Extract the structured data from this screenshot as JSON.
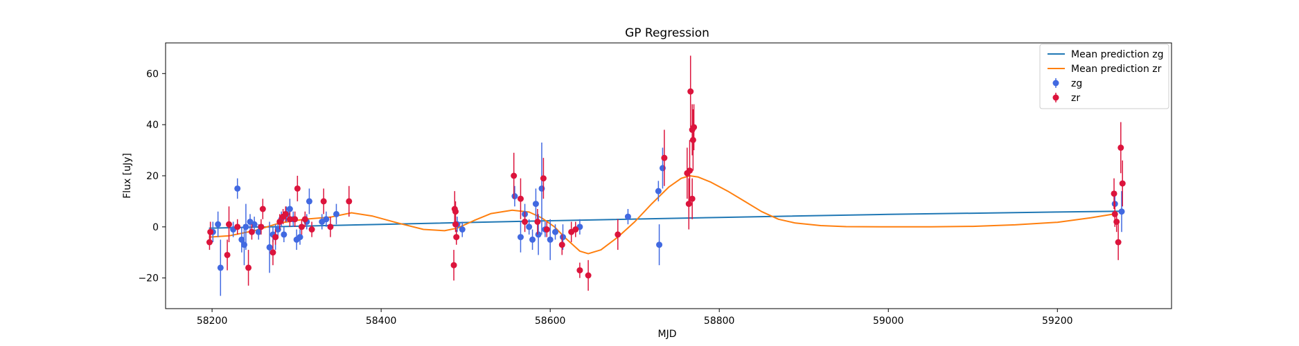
{
  "chart_data": {
    "type": "scatter",
    "title": "GP Regression",
    "xlabel": "MJD",
    "ylabel": "Flux [uJy]",
    "xlim": [
      58145,
      59335
    ],
    "ylim": [
      -32,
      72
    ],
    "xticks": [
      58200,
      58400,
      58600,
      58800,
      59000,
      59200
    ],
    "yticks": [
      -20,
      0,
      20,
      40,
      60
    ],
    "grid": false,
    "legend_position": "top-right",
    "colors": {
      "zg": "#4169e1",
      "zr": "#dc143c",
      "mean_zg": "#1f77b4",
      "mean_zr": "#ff7f0e"
    },
    "series": [
      {
        "name": "Mean prediction zg",
        "kind": "line",
        "color": "#1f77b4",
        "x": [
          58197,
          58400,
          58600,
          58800,
          59000,
          59200,
          59275
        ],
        "y": [
          -0.5,
          1.0,
          2.4,
          3.7,
          4.9,
          5.8,
          6.1
        ]
      },
      {
        "name": "Mean prediction zr",
        "kind": "line",
        "color": "#ff7f0e",
        "x": [
          58197,
          58220,
          58250,
          58280,
          58310,
          58340,
          58365,
          58390,
          58420,
          58450,
          58475,
          58490,
          58510,
          58530,
          58555,
          58575,
          58590,
          58605,
          58620,
          58635,
          58645,
          58660,
          58680,
          58700,
          58720,
          58740,
          58755,
          58765,
          58775,
          58790,
          58810,
          58830,
          58850,
          58870,
          58890,
          58920,
          58950,
          59000,
          59050,
          59100,
          59150,
          59200,
          59240,
          59270
        ],
        "y": [
          -4,
          -3.5,
          -1.5,
          1.5,
          3,
          3.8,
          5.5,
          4.2,
          1.5,
          -1.0,
          -1.5,
          -0.5,
          2.5,
          5.2,
          6.5,
          5.8,
          3.5,
          0,
          -5,
          -9.5,
          -10.5,
          -9,
          -4,
          2,
          9,
          15.5,
          19,
          20,
          19.5,
          17.5,
          14,
          10,
          6,
          3,
          1.5,
          0.5,
          0.1,
          0,
          0,
          0.2,
          0.8,
          1.8,
          3.6,
          5.2
        ]
      },
      {
        "name": "zg",
        "kind": "errorbar",
        "color": "#4169e1",
        "points": [
          {
            "x": 58201,
            "y": -2,
            "err": 4
          },
          {
            "x": 58207,
            "y": 1,
            "err": 5
          },
          {
            "x": 58210,
            "y": -16,
            "err": 11
          },
          {
            "x": 58225,
            "y": -1,
            "err": 3
          },
          {
            "x": 58230,
            "y": 15,
            "err": 4
          },
          {
            "x": 58235,
            "y": -5,
            "err": 5
          },
          {
            "x": 58238,
            "y": -7,
            "err": 8
          },
          {
            "x": 58240,
            "y": 0,
            "err": 9
          },
          {
            "x": 58245,
            "y": 2,
            "err": 3
          },
          {
            "x": 58250,
            "y": 1,
            "err": 3
          },
          {
            "x": 58255,
            "y": -2,
            "err": 3
          },
          {
            "x": 58268,
            "y": -8,
            "err": 10
          },
          {
            "x": 58272,
            "y": -3,
            "err": 3
          },
          {
            "x": 58275,
            "y": -4,
            "err": 5
          },
          {
            "x": 58278,
            "y": -1,
            "err": 3
          },
          {
            "x": 58282,
            "y": 3,
            "err": 3
          },
          {
            "x": 58285,
            "y": -3,
            "err": 3
          },
          {
            "x": 58288,
            "y": 5,
            "err": 3
          },
          {
            "x": 58292,
            "y": 7,
            "err": 4
          },
          {
            "x": 58296,
            "y": 3,
            "err": 3
          },
          {
            "x": 58300,
            "y": -5,
            "err": 4
          },
          {
            "x": 58304,
            "y": -4,
            "err": 3
          },
          {
            "x": 58312,
            "y": 2,
            "err": 3
          },
          {
            "x": 58315,
            "y": 10,
            "err": 5
          },
          {
            "x": 58330,
            "y": 2,
            "err": 3
          },
          {
            "x": 58335,
            "y": 3,
            "err": 3
          },
          {
            "x": 58347,
            "y": 5,
            "err": 4
          },
          {
            "x": 58490,
            "y": 1,
            "err": 3
          },
          {
            "x": 58496,
            "y": -1,
            "err": 3
          },
          {
            "x": 58558,
            "y": 12,
            "err": 4
          },
          {
            "x": 58565,
            "y": -4,
            "err": 6
          },
          {
            "x": 58570,
            "y": 5,
            "err": 4
          },
          {
            "x": 58575,
            "y": 0,
            "err": 3
          },
          {
            "x": 58579,
            "y": -5,
            "err": 4
          },
          {
            "x": 58583,
            "y": 9,
            "err": 6
          },
          {
            "x": 58586,
            "y": -3,
            "err": 8
          },
          {
            "x": 58590,
            "y": 15,
            "err": 18
          },
          {
            "x": 58594,
            "y": -1,
            "err": 3
          },
          {
            "x": 58600,
            "y": -5,
            "err": 8
          },
          {
            "x": 58606,
            "y": -2,
            "err": 3
          },
          {
            "x": 58615,
            "y": -4,
            "err": 5
          },
          {
            "x": 58635,
            "y": 0,
            "err": 3
          },
          {
            "x": 58692,
            "y": 4,
            "err": 3
          },
          {
            "x": 58728,
            "y": 14,
            "err": 4
          },
          {
            "x": 58729,
            "y": -7,
            "err": 8
          },
          {
            "x": 58733,
            "y": 23,
            "err": 8
          },
          {
            "x": 59268,
            "y": 9,
            "err": 3
          },
          {
            "x": 59276,
            "y": 6,
            "err": 8
          }
        ]
      },
      {
        "name": "zr",
        "kind": "errorbar",
        "color": "#dc143c",
        "points": [
          {
            "x": 58197,
            "y": -6,
            "err": 3
          },
          {
            "x": 58198,
            "y": -2,
            "err": 4
          },
          {
            "x": 58218,
            "y": -11,
            "err": 6
          },
          {
            "x": 58220,
            "y": 1,
            "err": 7
          },
          {
            "x": 58230,
            "y": 0,
            "err": 3
          },
          {
            "x": 58243,
            "y": -16,
            "err": 7
          },
          {
            "x": 58247,
            "y": -2,
            "err": 3
          },
          {
            "x": 58258,
            "y": 0,
            "err": 3
          },
          {
            "x": 58260,
            "y": 7,
            "err": 4
          },
          {
            "x": 58272,
            "y": -10,
            "err": 5
          },
          {
            "x": 58275,
            "y": -4,
            "err": 3
          },
          {
            "x": 58280,
            "y": 2,
            "err": 3
          },
          {
            "x": 58284,
            "y": 4,
            "err": 3
          },
          {
            "x": 58287,
            "y": 5,
            "err": 3
          },
          {
            "x": 58292,
            "y": 3,
            "err": 3
          },
          {
            "x": 58298,
            "y": 3,
            "err": 3
          },
          {
            "x": 58301,
            "y": 15,
            "err": 5
          },
          {
            "x": 58306,
            "y": 0,
            "err": 3
          },
          {
            "x": 58310,
            "y": 3,
            "err": 3
          },
          {
            "x": 58318,
            "y": -1,
            "err": 3
          },
          {
            "x": 58332,
            "y": 10,
            "err": 5
          },
          {
            "x": 58340,
            "y": 0,
            "err": 4
          },
          {
            "x": 58362,
            "y": 10,
            "err": 6
          },
          {
            "x": 58486,
            "y": -15,
            "err": 6
          },
          {
            "x": 58487,
            "y": 7,
            "err": 7
          },
          {
            "x": 58488,
            "y": 6,
            "err": 4
          },
          {
            "x": 58488,
            "y": 1,
            "err": 3
          },
          {
            "x": 58489,
            "y": -4,
            "err": 3
          },
          {
            "x": 58557,
            "y": 20,
            "err": 9
          },
          {
            "x": 58565,
            "y": 11,
            "err": 8
          },
          {
            "x": 58570,
            "y": 2,
            "err": 4
          },
          {
            "x": 58585,
            "y": 2,
            "err": 5
          },
          {
            "x": 58592,
            "y": 19,
            "err": 8
          },
          {
            "x": 58596,
            "y": -1,
            "err": 3
          },
          {
            "x": 58614,
            "y": -7,
            "err": 4
          },
          {
            "x": 58625,
            "y": -2,
            "err": 4
          },
          {
            "x": 58630,
            "y": -1,
            "err": 3
          },
          {
            "x": 58635,
            "y": -17,
            "err": 3
          },
          {
            "x": 58645,
            "y": -19,
            "err": 6
          },
          {
            "x": 58680,
            "y": -3,
            "err": 6
          },
          {
            "x": 58735,
            "y": 27,
            "err": 11
          },
          {
            "x": 58762,
            "y": 21,
            "err": 10
          },
          {
            "x": 58764,
            "y": 9,
            "err": 10
          },
          {
            "x": 58765,
            "y": 22,
            "err": 12
          },
          {
            "x": 58766,
            "y": 53,
            "err": 14
          },
          {
            "x": 58768,
            "y": 38,
            "err": 10
          },
          {
            "x": 58768,
            "y": 11,
            "err": 8
          },
          {
            "x": 58769,
            "y": 34,
            "err": 12
          },
          {
            "x": 58770,
            "y": 39,
            "err": 9
          },
          {
            "x": 59267,
            "y": 13,
            "err": 6
          },
          {
            "x": 59268,
            "y": 5,
            "err": 5
          },
          {
            "x": 59270,
            "y": 2,
            "err": 4
          },
          {
            "x": 59272,
            "y": -6,
            "err": 7
          },
          {
            "x": 59275,
            "y": 31,
            "err": 10
          },
          {
            "x": 59277,
            "y": 17,
            "err": 9
          }
        ]
      }
    ]
  }
}
